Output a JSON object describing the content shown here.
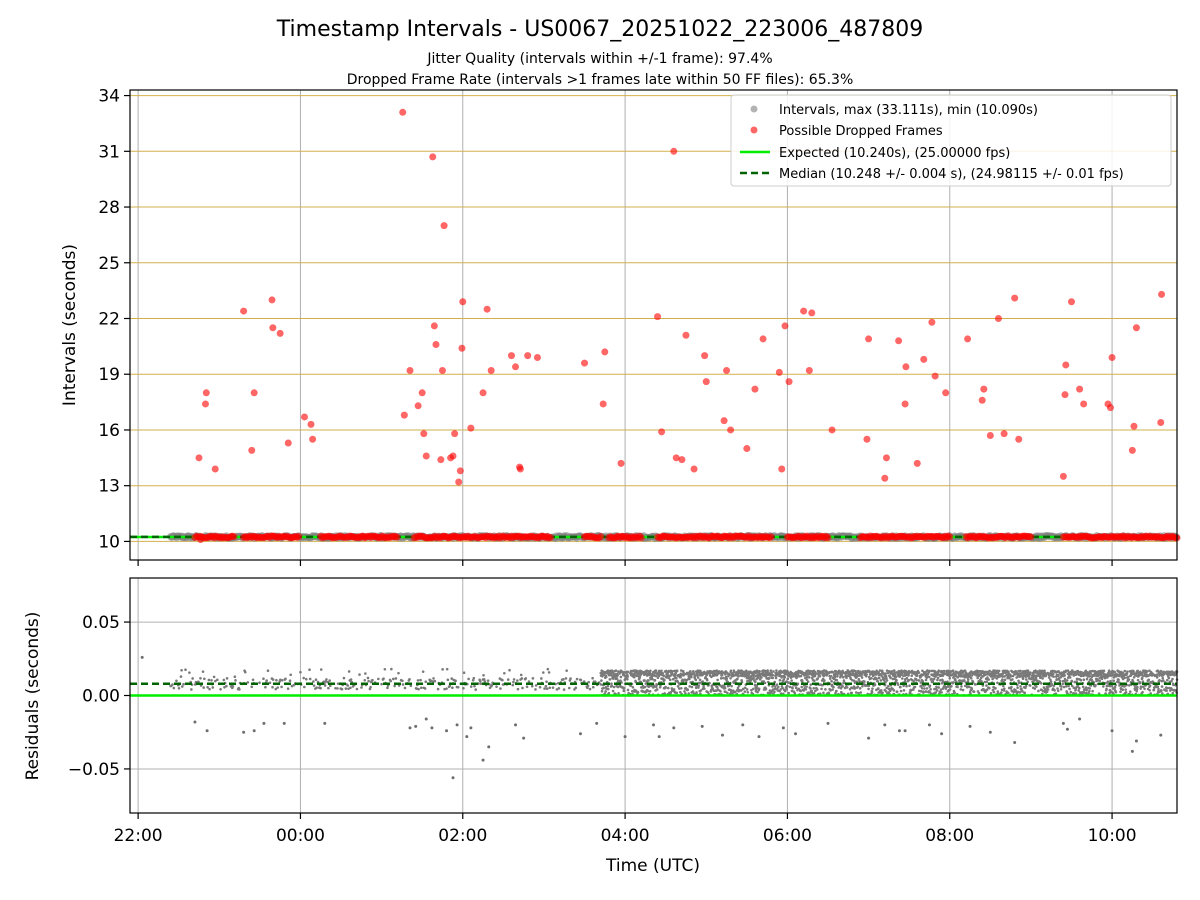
{
  "chart_data": [
    {
      "type": "scatter",
      "title": "Timestamp Intervals - US0067_20251022_223006_487809",
      "subtitle_1": "Jitter Quality (intervals within +/-1 frame): 97.4%",
      "subtitle_2": "Dropped Frame Rate (intervals >1 frames late within 50 FF files): 65.3%",
      "xlabel": "",
      "ylabel": "Intervals (seconds)",
      "xlim_hours": [
        -2.1,
        10.8
      ],
      "ylim": [
        9.0,
        34.3
      ],
      "yticks": [
        10,
        13,
        16,
        19,
        22,
        25,
        28,
        31,
        34
      ],
      "ytick_labels": [
        "10",
        "13",
        "16",
        "19",
        "22",
        "25",
        "28",
        "31",
        "34"
      ],
      "gridlines_horizontal": "goldenrod",
      "legend_position": "top-right",
      "legend": [
        "Intervals, max (33.111s), min (10.090s)",
        "Possible Dropped Frames",
        "Expected (10.240s), (25.00000 fps)",
        "Median (10.248 +/- 0.004 s), (24.98115 +/- 0.01 fps)"
      ],
      "expected": 10.24,
      "median": 10.248,
      "normal_band_ranges_hours": [
        [
          -1.45,
          -0.85
        ],
        [
          -0.7,
          -0.25
        ],
        [
          0.5,
          1.2
        ],
        [
          1.4,
          3.6
        ],
        [
          3.8,
          4.3
        ],
        [
          4.5,
          6.0
        ],
        [
          6.1,
          6.8
        ],
        [
          7.0,
          7.8
        ],
        [
          8.0,
          9.1
        ],
        [
          9.5,
          10.8
        ]
      ],
      "dropped_band_ranges_hours": [
        [
          -1.3,
          -0.8
        ],
        [
          -0.7,
          0.0
        ],
        [
          0.25,
          1.2
        ],
        [
          1.4,
          3.1
        ],
        [
          3.5,
          3.7
        ],
        [
          3.8,
          4.2
        ],
        [
          4.4,
          5.8
        ],
        [
          6.0,
          6.5
        ],
        [
          6.9,
          8.0
        ],
        [
          8.2,
          9.0
        ],
        [
          9.4,
          10.8
        ]
      ],
      "dropped_frames": [
        [
          -1.25,
          14.5
        ],
        [
          -1.23,
          10.1
        ],
        [
          -1.16,
          18.0
        ],
        [
          -1.17,
          17.4
        ],
        [
          -1.05,
          13.9
        ],
        [
          -0.7,
          22.4
        ],
        [
          -0.6,
          14.9
        ],
        [
          -0.57,
          18.0
        ],
        [
          -0.35,
          23.0
        ],
        [
          -0.34,
          21.5
        ],
        [
          -0.25,
          21.2
        ],
        [
          -0.15,
          15.3
        ],
        [
          0.05,
          16.7
        ],
        [
          0.13,
          16.3
        ],
        [
          0.15,
          15.5
        ],
        [
          1.26,
          33.1
        ],
        [
          1.28,
          16.8
        ],
        [
          1.35,
          19.2
        ],
        [
          1.45,
          17.3
        ],
        [
          1.5,
          18.0
        ],
        [
          1.52,
          15.8
        ],
        [
          1.55,
          14.6
        ],
        [
          1.63,
          30.7
        ],
        [
          1.65,
          21.6
        ],
        [
          1.67,
          20.6
        ],
        [
          1.73,
          14.4
        ],
        [
          1.75,
          19.2
        ],
        [
          1.77,
          27.0
        ],
        [
          1.85,
          14.5
        ],
        [
          1.88,
          14.6
        ],
        [
          1.9,
          15.8
        ],
        [
          1.95,
          13.2
        ],
        [
          1.97,
          13.8
        ],
        [
          1.99,
          20.4
        ],
        [
          2.0,
          22.9
        ],
        [
          2.1,
          16.1
        ],
        [
          2.25,
          18.0
        ],
        [
          2.3,
          22.5
        ],
        [
          2.35,
          19.2
        ],
        [
          2.6,
          20.0
        ],
        [
          2.65,
          19.4
        ],
        [
          2.7,
          14.0
        ],
        [
          2.71,
          13.9
        ],
        [
          2.8,
          20.0
        ],
        [
          2.92,
          19.9
        ],
        [
          3.5,
          19.6
        ],
        [
          3.75,
          20.2
        ],
        [
          3.73,
          17.4
        ],
        [
          3.95,
          14.2
        ],
        [
          4.4,
          22.1
        ],
        [
          4.45,
          15.9
        ],
        [
          4.6,
          31.0
        ],
        [
          4.63,
          14.5
        ],
        [
          4.7,
          14.4
        ],
        [
          4.75,
          21.1
        ],
        [
          4.85,
          13.9
        ],
        [
          4.98,
          20.0
        ],
        [
          5.0,
          18.6
        ],
        [
          5.22,
          16.5
        ],
        [
          5.25,
          19.2
        ],
        [
          5.3,
          16.0
        ],
        [
          5.5,
          15.0
        ],
        [
          5.6,
          18.2
        ],
        [
          5.7,
          20.9
        ],
        [
          5.9,
          19.1
        ],
        [
          5.93,
          13.9
        ],
        [
          5.97,
          21.6
        ],
        [
          6.02,
          18.6
        ],
        [
          6.2,
          22.4
        ],
        [
          6.27,
          19.2
        ],
        [
          6.3,
          22.3
        ],
        [
          6.55,
          16.0
        ],
        [
          6.98,
          15.5
        ],
        [
          7.0,
          20.9
        ],
        [
          7.2,
          13.4
        ],
        [
          7.22,
          14.5
        ],
        [
          7.37,
          20.8
        ],
        [
          7.46,
          19.4
        ],
        [
          7.45,
          17.4
        ],
        [
          7.6,
          14.2
        ],
        [
          7.68,
          19.8
        ],
        [
          7.78,
          21.8
        ],
        [
          7.82,
          18.9
        ],
        [
          7.95,
          18.0
        ],
        [
          8.22,
          20.9
        ],
        [
          8.4,
          17.6
        ],
        [
          8.42,
          18.2
        ],
        [
          8.5,
          15.7
        ],
        [
          8.6,
          22.0
        ],
        [
          8.67,
          15.8
        ],
        [
          8.8,
          23.1
        ],
        [
          8.85,
          15.5
        ],
        [
          9.4,
          13.5
        ],
        [
          9.42,
          17.9
        ],
        [
          9.43,
          19.5
        ],
        [
          9.5,
          22.9
        ],
        [
          9.6,
          18.2
        ],
        [
          9.65,
          17.4
        ],
        [
          9.95,
          17.4
        ],
        [
          9.98,
          17.2
        ],
        [
          10.0,
          19.9
        ],
        [
          10.25,
          14.9
        ],
        [
          10.27,
          16.2
        ],
        [
          10.3,
          21.5
        ],
        [
          10.6,
          16.4
        ],
        [
          10.61,
          23.3
        ]
      ]
    },
    {
      "type": "scatter",
      "xlabel": "Time (UTC)",
      "ylabel": "Residuals (seconds)",
      "xlim_hours": [
        -2.1,
        10.8
      ],
      "ylim": [
        -0.08,
        0.08
      ],
      "yticks": [
        -0.05,
        0.0,
        0.05
      ],
      "ytick_labels": [
        "−0.05",
        "0.00",
        "0.05"
      ],
      "xticks_hours": [
        -2,
        0,
        2,
        4,
        6,
        8,
        10
      ],
      "xtick_labels": [
        "22:00",
        "00:00",
        "02:00",
        "04:00",
        "06:00",
        "08:00",
        "10:00"
      ],
      "expected_residual": 0.0,
      "median_residual": 0.008,
      "sparse_segment_hours": [
        -1.6,
        3.7
      ],
      "dense_segment_hours": [
        3.7,
        10.8
      ],
      "outliers": [
        [
          -1.95,
          0.026
        ],
        [
          -1.3,
          -0.018
        ],
        [
          -1.15,
          -0.024
        ],
        [
          -0.7,
          -0.025
        ],
        [
          -0.57,
          -0.024
        ],
        [
          -0.45,
          -0.019
        ],
        [
          -0.2,
          -0.019
        ],
        [
          0.3,
          -0.019
        ],
        [
          1.35,
          -0.022
        ],
        [
          1.42,
          -0.021
        ],
        [
          1.55,
          -0.016
        ],
        [
          1.62,
          -0.022
        ],
        [
          1.8,
          -0.024
        ],
        [
          1.88,
          -0.056
        ],
        [
          1.93,
          -0.02
        ],
        [
          2.05,
          -0.028
        ],
        [
          2.1,
          -0.022
        ],
        [
          2.25,
          -0.044
        ],
        [
          2.32,
          -0.035
        ],
        [
          2.65,
          -0.02
        ],
        [
          2.75,
          -0.029
        ],
        [
          3.45,
          -0.026
        ],
        [
          3.65,
          -0.019
        ],
        [
          4.0,
          -0.028
        ],
        [
          4.35,
          -0.02
        ],
        [
          4.42,
          -0.028
        ],
        [
          4.6,
          -0.022
        ],
        [
          4.95,
          -0.021
        ],
        [
          5.2,
          -0.027
        ],
        [
          5.45,
          -0.02
        ],
        [
          5.65,
          -0.028
        ],
        [
          5.95,
          -0.022
        ],
        [
          6.1,
          -0.026
        ],
        [
          6.5,
          -0.019
        ],
        [
          7.0,
          -0.029
        ],
        [
          7.2,
          -0.02
        ],
        [
          7.38,
          -0.024
        ],
        [
          7.45,
          -0.024
        ],
        [
          7.75,
          -0.02
        ],
        [
          7.9,
          -0.026
        ],
        [
          8.25,
          -0.021
        ],
        [
          8.5,
          -0.025
        ],
        [
          8.8,
          -0.032
        ],
        [
          9.4,
          -0.019
        ],
        [
          9.45,
          -0.023
        ],
        [
          9.6,
          -0.016
        ],
        [
          10.0,
          -0.024
        ],
        [
          10.25,
          -0.038
        ],
        [
          10.3,
          -0.031
        ],
        [
          10.6,
          -0.027
        ]
      ]
    }
  ]
}
